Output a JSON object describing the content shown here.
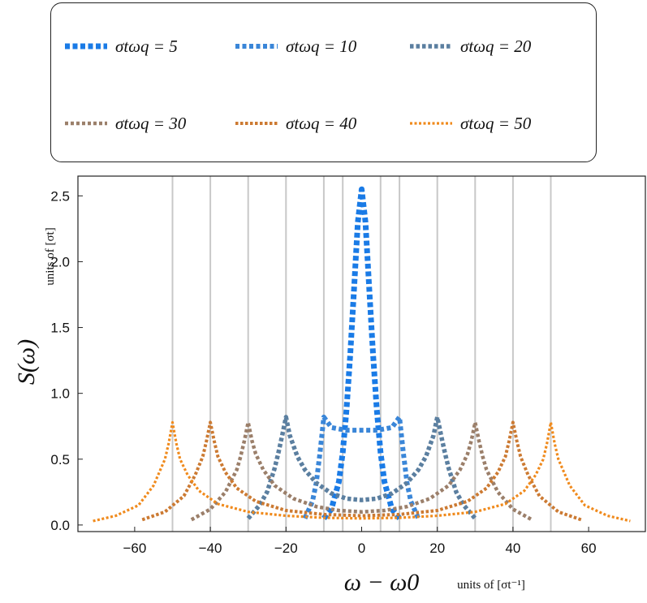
{
  "chart_data": {
    "type": "line",
    "title": "",
    "ylabel": "S(ω)",
    "ylabel_units": "units of [σt]",
    "xlabel": "ω − ω0",
    "xlabel_units": "units of [σt⁻¹]",
    "xlim": [
      -75,
      75
    ],
    "ylim": [
      -0.05,
      2.65
    ],
    "x_ticks": [
      -60,
      -40,
      -20,
      0,
      20,
      40,
      60
    ],
    "y_ticks": [
      0.0,
      0.5,
      1.0,
      1.5,
      2.0,
      2.5
    ],
    "x_tick_labels": [
      "−60",
      "−40",
      "−20",
      "0",
      "20",
      "40",
      "60"
    ],
    "y_tick_labels": [
      "0.0",
      "0.5",
      "1.0",
      "1.5",
      "2.0",
      "2.5"
    ],
    "vertical_gridlines": [
      -50,
      -40,
      -30,
      -20,
      -10,
      -5,
      5,
      10,
      20,
      30,
      40,
      50
    ],
    "legend_position": "top",
    "series": [
      {
        "name": "σtωq = 5",
        "legend": "σtωq = 5",
        "wq": 5,
        "color": "#1a7be6",
        "x": [
          -10,
          -8,
          -6,
          -5,
          -4,
          -3,
          -2,
          -1,
          0,
          1,
          2,
          3,
          4,
          5,
          6,
          8,
          10
        ],
        "y": [
          0.05,
          0.12,
          0.33,
          0.55,
          0.88,
          1.3,
          1.8,
          2.3,
          2.55,
          2.3,
          1.8,
          1.3,
          0.88,
          0.55,
          0.33,
          0.12,
          0.05
        ]
      },
      {
        "name": "σtωq = 10",
        "legend": "σtωq = 10",
        "wq": 10,
        "color": "#3a86d8",
        "x": [
          -15,
          -13,
          -12,
          -11,
          -10,
          -9,
          -8,
          -6,
          -4,
          -2,
          0,
          2,
          4,
          6,
          8,
          9,
          10,
          11,
          12,
          13,
          15
        ],
        "y": [
          0.05,
          0.18,
          0.32,
          0.55,
          0.82,
          0.78,
          0.74,
          0.73,
          0.72,
          0.72,
          0.72,
          0.72,
          0.72,
          0.73,
          0.74,
          0.78,
          0.82,
          0.55,
          0.32,
          0.18,
          0.05
        ]
      },
      {
        "name": "σtωq = 20",
        "legend": "σtωq = 20",
        "wq": 20,
        "color": "#5b7fa0",
        "x": [
          -30,
          -27,
          -25,
          -23,
          -22,
          -21,
          -20,
          -19,
          -17,
          -15,
          -12,
          -8,
          -4,
          0,
          4,
          8,
          12,
          15,
          17,
          19,
          20,
          21,
          22,
          23,
          25,
          27,
          30
        ],
        "y": [
          0.05,
          0.15,
          0.25,
          0.43,
          0.55,
          0.68,
          0.82,
          0.68,
          0.52,
          0.42,
          0.32,
          0.24,
          0.2,
          0.19,
          0.2,
          0.24,
          0.32,
          0.42,
          0.52,
          0.68,
          0.82,
          0.68,
          0.55,
          0.43,
          0.25,
          0.15,
          0.05
        ]
      },
      {
        "name": "σtωq = 30",
        "legend": "σtωq = 30",
        "wq": 30,
        "color": "#9b7f6a",
        "x": [
          -45,
          -40,
          -36,
          -33,
          -32,
          -31,
          -30,
          -29,
          -28,
          -26,
          -23,
          -18,
          -12,
          -6,
          0,
          6,
          12,
          18,
          23,
          26,
          28,
          29,
          30,
          31,
          32,
          33,
          36,
          40,
          45
        ],
        "y": [
          0.04,
          0.12,
          0.25,
          0.42,
          0.52,
          0.64,
          0.78,
          0.64,
          0.54,
          0.42,
          0.3,
          0.2,
          0.14,
          0.11,
          0.1,
          0.11,
          0.14,
          0.2,
          0.3,
          0.42,
          0.54,
          0.64,
          0.78,
          0.64,
          0.52,
          0.42,
          0.25,
          0.12,
          0.04
        ]
      },
      {
        "name": "σtωq = 40",
        "legend": "σtωq = 40",
        "wq": 40,
        "color": "#cc7a32",
        "x": [
          -58,
          -52,
          -47,
          -44,
          -42,
          -41,
          -40,
          -39,
          -38,
          -36,
          -33,
          -28,
          -20,
          -10,
          0,
          10,
          20,
          28,
          33,
          36,
          38,
          39,
          40,
          41,
          42,
          44,
          47,
          52,
          58
        ],
        "y": [
          0.04,
          0.1,
          0.22,
          0.38,
          0.52,
          0.64,
          0.78,
          0.64,
          0.52,
          0.4,
          0.28,
          0.18,
          0.11,
          0.08,
          0.07,
          0.08,
          0.11,
          0.18,
          0.28,
          0.4,
          0.52,
          0.64,
          0.78,
          0.64,
          0.52,
          0.38,
          0.22,
          0.1,
          0.04
        ]
      },
      {
        "name": "σtωq = 50",
        "legend": "σtωq = 50",
        "wq": 50,
        "color": "#f08a1c",
        "x": [
          -71,
          -65,
          -59,
          -55,
          -52,
          -51,
          -50,
          -49,
          -48,
          -46,
          -43,
          -38,
          -30,
          -20,
          -10,
          0,
          10,
          20,
          30,
          38,
          43,
          46,
          48,
          49,
          50,
          51,
          52,
          55,
          59,
          65,
          71
        ],
        "y": [
          0.03,
          0.07,
          0.15,
          0.3,
          0.5,
          0.62,
          0.78,
          0.62,
          0.5,
          0.38,
          0.26,
          0.16,
          0.1,
          0.07,
          0.055,
          0.05,
          0.055,
          0.07,
          0.1,
          0.16,
          0.26,
          0.38,
          0.5,
          0.62,
          0.78,
          0.62,
          0.5,
          0.3,
          0.15,
          0.07,
          0.03
        ]
      }
    ]
  }
}
